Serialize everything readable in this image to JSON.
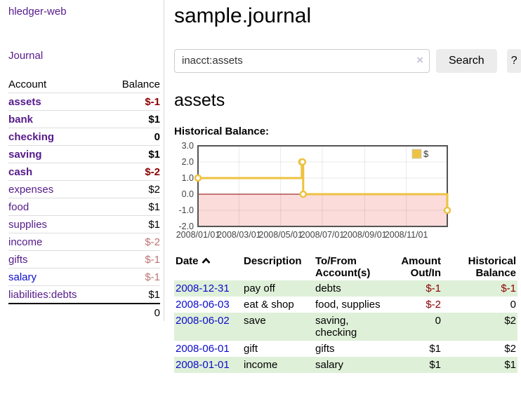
{
  "colors": {
    "purple": "#551a8b",
    "link-blue": "#0b0bcc",
    "neg-strong": "#8b0000",
    "neg-faded": "#bc7371",
    "stripe-green": "#dff0d8",
    "button-bg": "#ececec",
    "chart-line": "#edc240",
    "chart-negative-fill": "#fbdcdb",
    "chart-zero-line": "#8b0000",
    "chart-border": "#545454"
  },
  "sidebar": {
    "app_title": "hledger-web",
    "nav_journal": "Journal",
    "accounts": {
      "header_account": "Account",
      "header_balance": "Balance",
      "rows": [
        {
          "name": "assets",
          "depth": 1,
          "balance": "$-1",
          "bold": true,
          "neg": "strong",
          "link": "visited"
        },
        {
          "name": "bank",
          "depth": 2,
          "balance": "$1",
          "bold": true,
          "neg": "none",
          "link": "visited"
        },
        {
          "name": "checking",
          "depth": 3,
          "balance": "0",
          "bold": true,
          "neg": "none",
          "link": "visited"
        },
        {
          "name": "saving",
          "depth": 3,
          "balance": "$1",
          "bold": true,
          "neg": "none",
          "link": "visited"
        },
        {
          "name": "cash",
          "depth": 2,
          "balance": "$-2",
          "bold": true,
          "neg": "strong",
          "link": "visited"
        },
        {
          "name": "expenses",
          "depth": 1,
          "balance": "$2",
          "bold": false,
          "neg": "none",
          "link": "visited"
        },
        {
          "name": "food",
          "depth": 2,
          "balance": "$1",
          "bold": false,
          "neg": "none",
          "link": "visited"
        },
        {
          "name": "supplies",
          "depth": 2,
          "balance": "$1",
          "bold": false,
          "neg": "none",
          "link": "visited"
        },
        {
          "name": "income",
          "depth": 1,
          "balance": "$-2",
          "bold": false,
          "neg": "faded",
          "link": "visited"
        },
        {
          "name": "gifts",
          "depth": 2,
          "balance": "$-1",
          "bold": false,
          "neg": "faded",
          "link": "visited"
        },
        {
          "name": "salary",
          "depth": 2,
          "balance": "$-1",
          "bold": false,
          "neg": "faded",
          "link": "unvisited"
        },
        {
          "name": "liabilities:debts",
          "depth": 1,
          "balance": "$1",
          "bold": false,
          "neg": "none",
          "link": "visited"
        }
      ],
      "total": "0"
    }
  },
  "main": {
    "title": "sample.journal",
    "search": {
      "value": "inacct:assets",
      "clear_icon": "×",
      "button_label": "Search",
      "help_label": "?"
    },
    "account_heading": "assets",
    "chart_label": "Historical Balance:"
  },
  "chart_data": {
    "type": "line",
    "title": "Historical Balance",
    "step": true,
    "x_range": [
      "2008-01-01",
      "2008-12-31"
    ],
    "ylim": [
      -2,
      3
    ],
    "y_ticks": [
      "3.0",
      "2.0",
      "1.0",
      "0.0",
      "-1.0",
      "-2.0"
    ],
    "x_tick_dates": [
      "2008-01-01",
      "2008-03-01",
      "2008-05-01",
      "2008-07-01",
      "2008-09-01",
      "2008-11-01"
    ],
    "x_ticks": [
      "2008/01/01",
      "2008/03/01",
      "2008/05/01",
      "2008/07/01",
      "2008/09/01",
      "2008/11/01"
    ],
    "legend": {
      "label": "$",
      "position": "top-right"
    },
    "series": [
      {
        "name": "$",
        "points": [
          {
            "x": "2008-01-01",
            "y": 1
          },
          {
            "x": "2008-06-01",
            "y": 2
          },
          {
            "x": "2008-06-02",
            "y": 2
          },
          {
            "x": "2008-06-03",
            "y": 0
          },
          {
            "x": "2008-12-31",
            "y": -1
          }
        ]
      }
    ]
  },
  "register": {
    "headers": {
      "date": "Date",
      "description": "Description",
      "accounts": "To/From Account(s)",
      "amount": "Amount Out/In",
      "balance": "Historical Balance"
    },
    "sort": "ascending",
    "rows": [
      {
        "date": "2008-12-31",
        "description": "pay off",
        "accounts": "debts",
        "amount": "$-1",
        "amount_neg": true,
        "balance": "$-1",
        "balance_neg": true,
        "stripe": true
      },
      {
        "date": "2008-06-03",
        "description": "eat & shop",
        "accounts": "food, supplies",
        "amount": "$-2",
        "amount_neg": true,
        "balance": "0",
        "balance_neg": false,
        "stripe": false
      },
      {
        "date": "2008-06-02",
        "description": "save",
        "accounts": "saving, checking",
        "amount": "0",
        "amount_neg": false,
        "balance": "$2",
        "balance_neg": false,
        "stripe": true
      },
      {
        "date": "2008-06-01",
        "description": "gift",
        "accounts": "gifts",
        "amount": "$1",
        "amount_neg": false,
        "balance": "$2",
        "balance_neg": false,
        "stripe": false
      },
      {
        "date": "2008-01-01",
        "description": "income",
        "accounts": "salary",
        "amount": "$1",
        "amount_neg": false,
        "balance": "$1",
        "balance_neg": false,
        "stripe": true
      }
    ]
  }
}
